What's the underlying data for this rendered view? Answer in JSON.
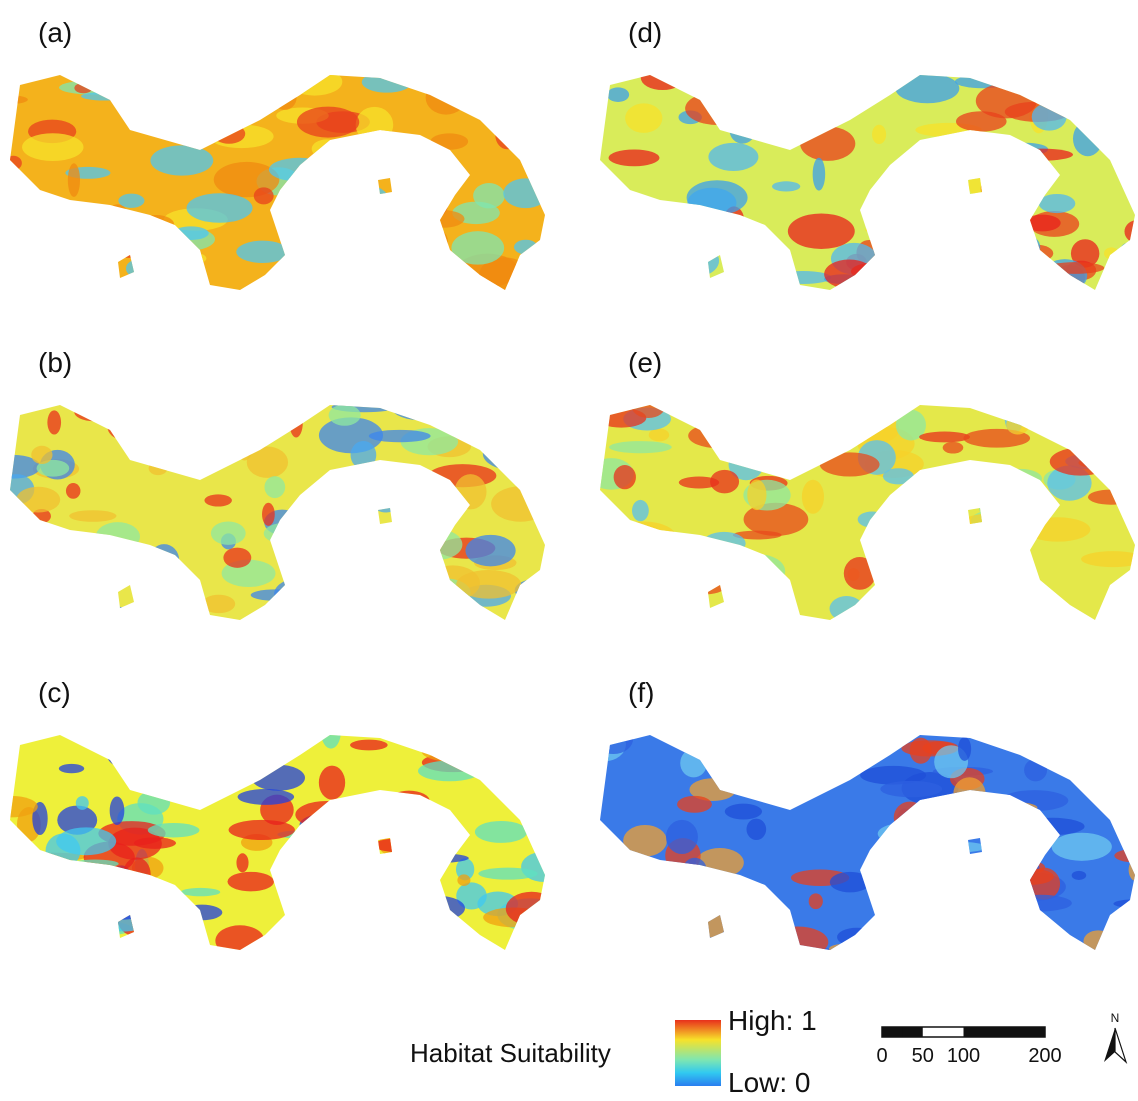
{
  "panels": [
    {
      "label": "(a)"
    },
    {
      "label": "(b)"
    },
    {
      "label": "(c)"
    },
    {
      "label": "(d)"
    },
    {
      "label": "(e)"
    },
    {
      "label": "(f)"
    }
  ],
  "legend": {
    "title": "Habitat Suitability",
    "high": "High: 1",
    "low": "Low: 0"
  },
  "scale_bar": {
    "ticks": [
      0,
      50,
      100,
      200
    ]
  },
  "north": "N"
}
